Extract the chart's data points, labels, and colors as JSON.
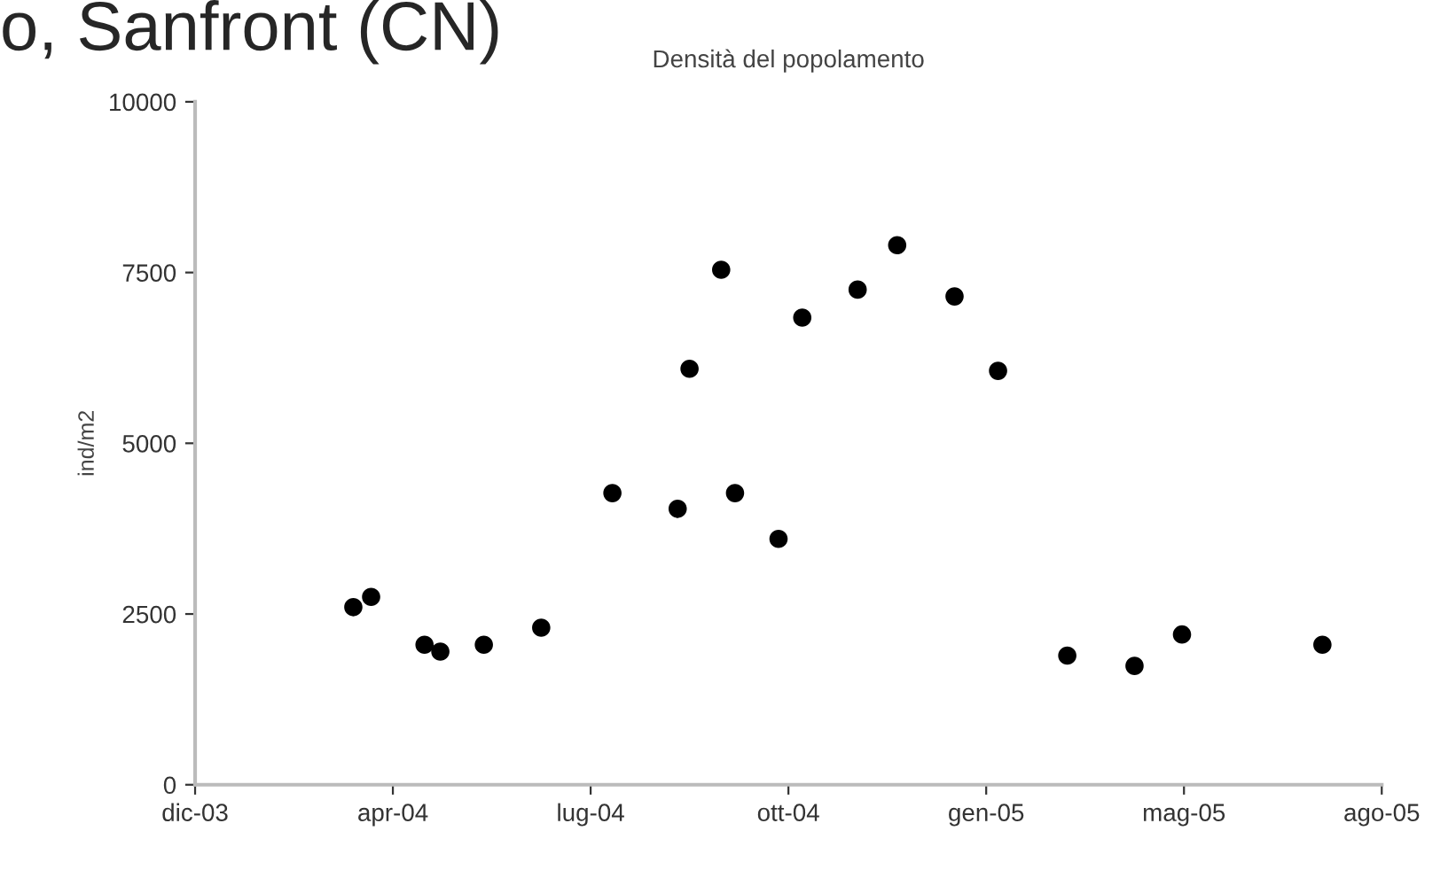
{
  "chart_data": {
    "type": "scatter",
    "title": "Densità del popolamento",
    "ylabel": "ind/m2",
    "annotations": [
      "o, Sanfront (CN)"
    ],
    "x": [
      "2004-03-17",
      "2004-03-26",
      "2004-04-22",
      "2004-04-30",
      "2004-05-22",
      "2004-06-20",
      "2004-07-26",
      "2004-08-28",
      "2004-09-03",
      "2004-09-19",
      "2004-09-26",
      "2004-10-18",
      "2004-10-30",
      "2004-11-27",
      "2004-12-17",
      "2005-01-15",
      "2005-02-06",
      "2005-03-13",
      "2005-04-16",
      "2005-05-10",
      "2005-07-20"
    ],
    "series": [
      {
        "color": "#000000",
        "values": [
          2600,
          2750,
          2050,
          1950,
          2050,
          2300,
          4270,
          4040,
          6090,
          7540,
          4270,
          3600,
          6840,
          7250,
          7900,
          7150,
          6060,
          1890,
          1740,
          2200,
          2050
        ]
      }
    ],
    "marker": "circle",
    "grid": false,
    "legend": false,
    "xlim": [
      "2003-12-28",
      "2005-08-19"
    ],
    "xticks": [
      {
        "value": "2003-12-28",
        "label": "dic-03"
      },
      {
        "value": "2004-04-06",
        "label": "apr-04"
      },
      {
        "value": "2004-07-15",
        "label": "lug-04"
      },
      {
        "value": "2004-10-23",
        "label": "ott-04"
      },
      {
        "value": "2005-01-31",
        "label": "gen-05"
      },
      {
        "value": "2005-05-11",
        "label": "mag-05"
      },
      {
        "value": "2005-08-19",
        "label": "ago-05"
      }
    ],
    "ylim": [
      0,
      10000
    ],
    "yticks": [
      0,
      2500,
      5000,
      7500,
      10000
    ]
  }
}
